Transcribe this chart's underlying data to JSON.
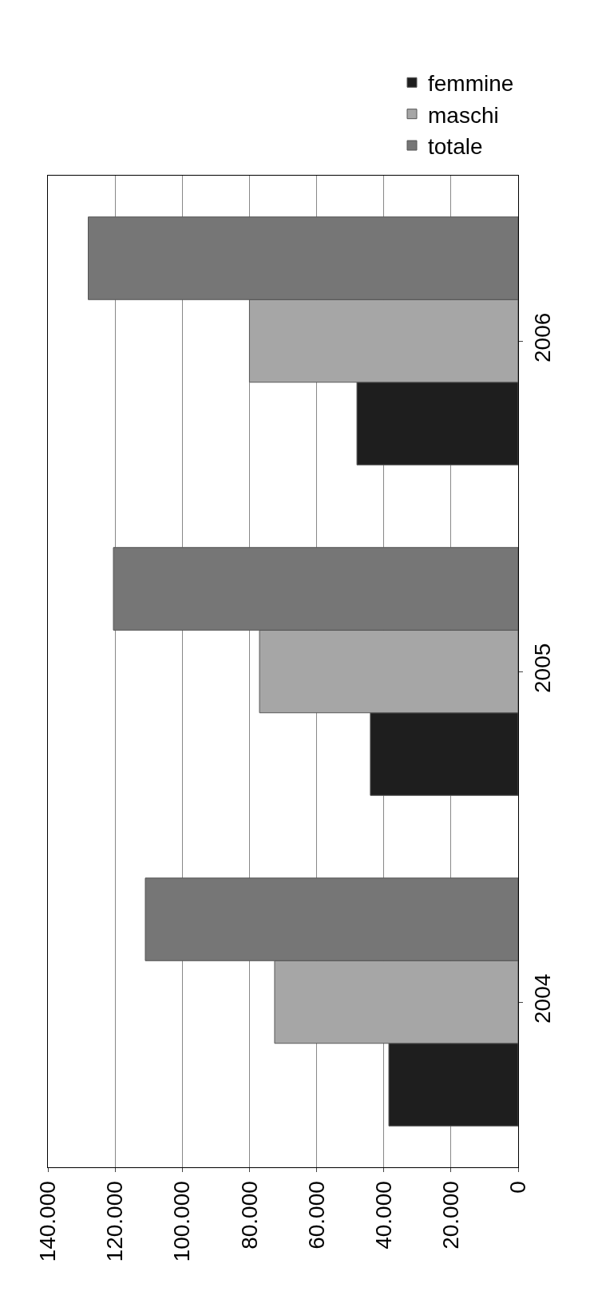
{
  "chart_data": {
    "type": "bar",
    "orientation": "horizontal",
    "categories": [
      "2006",
      "2005",
      "2004"
    ],
    "series": [
      {
        "name": "femmine",
        "color": "#1e1e1e",
        "values": [
          48000,
          44000,
          38500
        ]
      },
      {
        "name": "maschi",
        "color": "#a6a6a6",
        "values": [
          80000,
          77000,
          72500
        ]
      },
      {
        "name": "totale",
        "color": "#767676",
        "values": [
          128000,
          120500,
          111000
        ]
      }
    ],
    "xlim": [
      140000,
      0
    ],
    "xticks": [
      {
        "value": 0,
        "label": "0"
      },
      {
        "value": 20000,
        "label": "20.000"
      },
      {
        "value": 40000,
        "label": "40.000"
      },
      {
        "value": 60000,
        "label": "60.000"
      },
      {
        "value": 80000,
        "label": "80.000"
      },
      {
        "value": 100000,
        "label": "100.000"
      },
      {
        "value": 120000,
        "label": "120.000"
      },
      {
        "value": 140000,
        "label": "140.000"
      }
    ],
    "grid": "x",
    "legend": "top right"
  }
}
